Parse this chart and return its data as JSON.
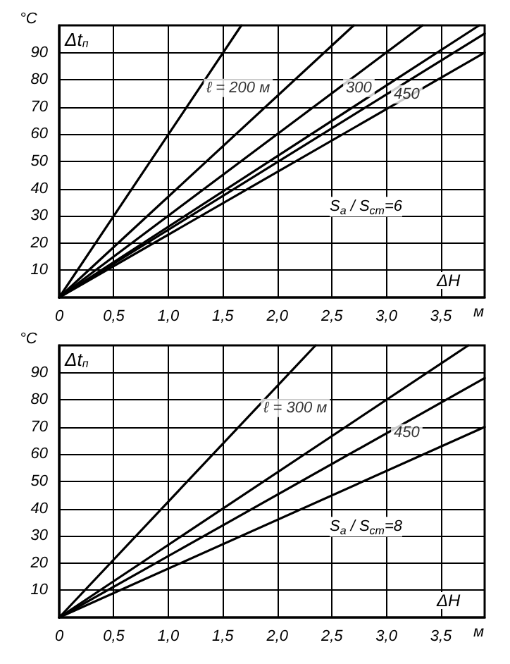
{
  "chart_data": [
    {
      "type": "line",
      "xlabel": "ΔH",
      "ylabel": "Δt$_{п}$",
      "xlim": [
        0,
        3.9
      ],
      "ylim": [
        0,
        100
      ],
      "xticks": [
        {
          "value": 0,
          "label": "0"
        },
        {
          "value": 0.5,
          "label": "0,5"
        },
        {
          "value": 1,
          "label": "1,0"
        },
        {
          "value": 1.5,
          "label": "1,5"
        },
        {
          "value": 2,
          "label": "2,0"
        },
        {
          "value": 2.5,
          "label": "2,5"
        },
        {
          "value": 3,
          "label": "3,0"
        },
        {
          "value": 3.5,
          "label": "3,5"
        }
      ],
      "yticks": [
        10,
        20,
        30,
        40,
        50,
        60,
        70,
        80,
        90
      ],
      "grid": true,
      "line_style": "solid",
      "marker": "none",
      "series": [
        {
          "name": "ℓ = 200 м",
          "color": "#000000",
          "x": [
            0,
            1.67
          ],
          "values": [
            0,
            100
          ]
        },
        {
          "color": "#000000",
          "x": [
            0,
            2.7
          ],
          "values": [
            0,
            100
          ]
        },
        {
          "name": "300",
          "color": "#000000",
          "x": [
            0,
            3.33
          ],
          "values": [
            0,
            100
          ]
        },
        {
          "color": "#000000",
          "x": [
            0,
            3.85
          ],
          "values": [
            0,
            100
          ]
        },
        {
          "name": "450",
          "color": "#000000",
          "x": [
            0,
            3.9
          ],
          "values": [
            0,
            97
          ]
        },
        {
          "color": "#000000",
          "x": [
            0,
            3.9
          ],
          "values": [
            0,
            90
          ]
        }
      ],
      "annotations": [
        "°C",
        "м",
        "S$_{a}$ / S$_{ст}$=6"
      ]
    },
    {
      "type": "line",
      "xlabel": "ΔH",
      "ylabel": "Δt$_{п}$",
      "xlim": [
        0,
        3.9
      ],
      "ylim": [
        0,
        100
      ],
      "xticks": [
        {
          "value": 0,
          "label": "0"
        },
        {
          "value": 0.5,
          "label": "0,5"
        },
        {
          "value": 1,
          "label": "1,0"
        },
        {
          "value": 1.5,
          "label": "1,5"
        },
        {
          "value": 2,
          "label": "2,0"
        },
        {
          "value": 2.5,
          "label": "2,5"
        },
        {
          "value": 3,
          "label": "3,0"
        },
        {
          "value": 3.5,
          "label": "3,5"
        }
      ],
      "yticks": [
        10,
        20,
        30,
        40,
        50,
        60,
        70,
        80,
        90
      ],
      "grid": true,
      "line_style": "solid",
      "marker": "none",
      "series": [
        {
          "name": "ℓ = 300 м",
          "color": "#000000",
          "x": [
            0,
            2.35
          ],
          "values": [
            0,
            100
          ]
        },
        {
          "color": "#000000",
          "x": [
            0,
            3.75
          ],
          "values": [
            0,
            100
          ]
        },
        {
          "name": "450",
          "color": "#000000",
          "x": [
            0,
            3.9
          ],
          "values": [
            0,
            88
          ]
        },
        {
          "color": "#000000",
          "x": [
            0,
            3.9
          ],
          "values": [
            0,
            70
          ]
        }
      ],
      "annotations": [
        "°C",
        "м",
        "S$_{a}$ / S$_{ст}$=8"
      ]
    }
  ]
}
